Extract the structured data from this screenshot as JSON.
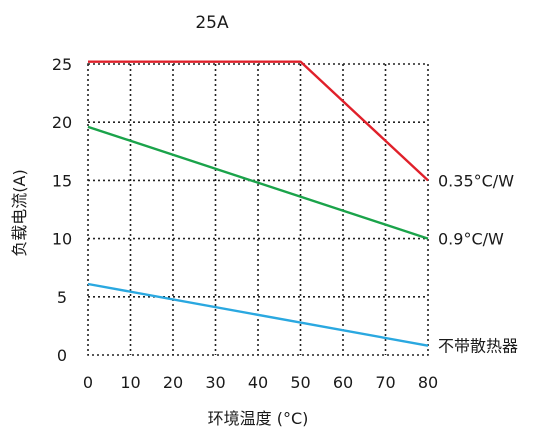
{
  "chart_data": {
    "type": "line",
    "title": "25A",
    "xlabel": "环境温度 (°C)",
    "ylabel": "负载电流(A)",
    "xlim": [
      0,
      80
    ],
    "ylim": [
      0,
      25
    ],
    "x_ticks": [
      0,
      10,
      20,
      30,
      40,
      50,
      60,
      70,
      80
    ],
    "y_ticks": [
      0,
      5,
      10,
      15,
      20,
      25
    ],
    "grid": true,
    "grid_style": "dotted",
    "series": [
      {
        "name": "0.35°C/W",
        "color": "#e0202a",
        "points": [
          [
            0,
            25.2
          ],
          [
            50,
            25.2
          ],
          [
            80,
            15.0
          ]
        ]
      },
      {
        "name": "0.9°C/W",
        "color": "#1aa34a",
        "points": [
          [
            0,
            19.6
          ],
          [
            80,
            10.0
          ]
        ]
      },
      {
        "name": "不带散热器",
        "color": "#2aa8e0",
        "points": [
          [
            0,
            6.1
          ],
          [
            80,
            0.8
          ]
        ]
      }
    ]
  }
}
